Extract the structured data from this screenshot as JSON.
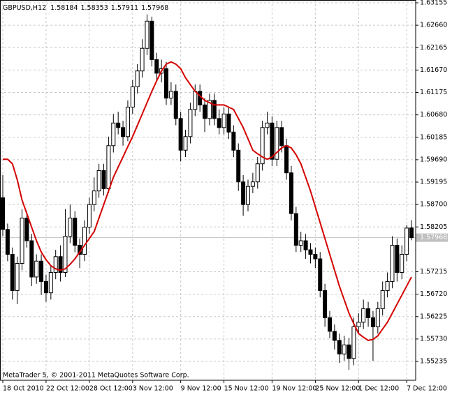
{
  "chart_data": {
    "type": "candlestick",
    "title": "GBPUSD,H12",
    "header_values": [
      1.58184,
      1.58353,
      1.57911,
      1.57968
    ],
    "footer": "MetaTrader 5, © 2001-2011 MetaQuotes Software Corp.",
    "last_price": 1.57968,
    "categories": [
      "18 Oct 2010",
      null,
      null,
      null,
      null,
      null,
      null,
      null,
      null,
      "22 Oct 12:00",
      null,
      null,
      null,
      null,
      null,
      null,
      null,
      null,
      "28 Oct 12:00",
      null,
      null,
      null,
      null,
      null,
      null,
      null,
      null,
      "3 Nov 12:00",
      null,
      null,
      null,
      null,
      null,
      null,
      null,
      null,
      null,
      "9 Nov 12:00",
      null,
      null,
      null,
      null,
      null,
      null,
      null,
      null,
      "15 Nov 12:00",
      null,
      null,
      null,
      null,
      null,
      null,
      null,
      null,
      null,
      "19 Nov 12:00",
      null,
      null,
      null,
      null,
      null,
      null,
      null,
      null,
      "25 Nov 12:00",
      null,
      null,
      null,
      null,
      null,
      null,
      null,
      null,
      "1 Dec 12:00",
      null,
      null,
      null,
      null,
      null,
      null,
      null,
      null,
      null,
      "7 Dec 12:00",
      null
    ],
    "open": [
      1.5885,
      1.5815,
      1.576,
      1.568,
      1.574,
      1.584,
      1.579,
      1.571,
      1.5745,
      1.57,
      1.5675,
      1.572,
      1.5755,
      1.572,
      1.58,
      1.584,
      1.578,
      1.576,
      1.582,
      1.587,
      1.59,
      1.5945,
      1.5905,
      1.6,
      1.605,
      1.604,
      1.602,
      1.6085,
      1.613,
      1.6165,
      1.6215,
      1.6275,
      1.619,
      1.616,
      1.617,
      1.6105,
      1.612,
      1.606,
      1.599,
      1.602,
      1.608,
      1.612,
      1.609,
      1.606,
      1.61,
      1.606,
      1.604,
      1.607,
      1.603,
      1.599,
      1.592,
      1.587,
      1.591,
      1.592,
      1.596,
      1.604,
      1.605,
      1.597,
      1.604,
      1.6,
      1.594,
      1.585,
      1.578,
      1.579,
      1.577,
      1.576,
      1.575,
      1.568,
      1.562,
      1.559,
      1.557,
      1.554,
      1.556,
      1.553,
      1.56,
      1.561,
      1.564,
      1.562,
      1.56,
      1.564,
      1.568,
      1.57,
      1.578,
      1.572,
      1.576,
      1.58184
    ],
    "high": [
      1.5935,
      1.5828,
      1.5775,
      1.5755,
      1.586,
      1.5855,
      1.5805,
      1.576,
      1.576,
      1.5715,
      1.5735,
      1.577,
      1.578,
      1.586,
      1.587,
      1.5855,
      1.5795,
      1.5835,
      1.5885,
      1.593,
      1.596,
      1.596,
      1.602,
      1.607,
      1.6075,
      1.6055,
      1.61,
      1.6145,
      1.618,
      1.6235,
      1.629,
      1.6285,
      1.6205,
      1.619,
      1.6185,
      1.614,
      1.6135,
      1.6075,
      1.6035,
      1.6095,
      1.6135,
      1.6135,
      1.6105,
      1.6115,
      1.6115,
      1.608,
      1.6085,
      1.6085,
      1.6045,
      1.6005,
      1.5935,
      1.5925,
      1.594,
      1.5975,
      1.6055,
      1.6075,
      1.6065,
      1.6055,
      1.6055,
      1.6015,
      1.5955,
      1.5865,
      1.581,
      1.5805,
      1.5785,
      1.5775,
      1.5765,
      1.5695,
      1.5635,
      1.5605,
      1.5585,
      1.558,
      1.5575,
      1.562,
      1.563,
      1.566,
      1.5655,
      1.5635,
      1.5655,
      1.57,
      1.572,
      1.58,
      1.5795,
      1.578,
      1.5825,
      1.58353
    ],
    "low": [
      1.58,
      1.5745,
      1.566,
      1.565,
      1.5725,
      1.5775,
      1.569,
      1.5695,
      1.567,
      1.5655,
      1.566,
      1.5705,
      1.57,
      1.571,
      1.5785,
      1.5765,
      1.573,
      1.5745,
      1.5805,
      1.5855,
      1.5885,
      1.589,
      1.5895,
      1.5985,
      1.6025,
      1.6,
      1.601,
      1.607,
      1.6115,
      1.615,
      1.62,
      1.6175,
      1.6145,
      1.614,
      1.609,
      1.609,
      1.6045,
      1.5965,
      1.5975,
      1.6005,
      1.6065,
      1.6075,
      1.603,
      1.6045,
      1.6045,
      1.6025,
      1.6025,
      1.6015,
      1.5975,
      1.59,
      1.5845,
      1.5855,
      1.5895,
      1.5905,
      1.5945,
      1.6025,
      1.5955,
      1.5955,
      1.5985,
      1.5925,
      1.5835,
      1.5765,
      1.5765,
      1.575,
      1.574,
      1.573,
      1.5665,
      1.56,
      1.5575,
      1.555,
      1.552,
      1.5525,
      1.5505,
      1.5515,
      1.5585,
      1.5595,
      1.56,
      1.5525,
      1.5585,
      1.5625,
      1.5665,
      1.5685,
      1.57,
      1.5705,
      1.5745,
      1.57911
    ],
    "close": [
      1.5815,
      1.576,
      1.568,
      1.574,
      1.584,
      1.579,
      1.571,
      1.5745,
      1.57,
      1.5675,
      1.572,
      1.5755,
      1.572,
      1.58,
      1.584,
      1.578,
      1.576,
      1.582,
      1.587,
      1.59,
      1.5945,
      1.5905,
      1.6,
      1.605,
      1.604,
      1.602,
      1.6085,
      1.613,
      1.6165,
      1.6215,
      1.6275,
      1.619,
      1.616,
      1.617,
      1.6105,
      1.612,
      1.606,
      1.599,
      1.602,
      1.608,
      1.612,
      1.609,
      1.606,
      1.61,
      1.606,
      1.604,
      1.607,
      1.603,
      1.599,
      1.592,
      1.587,
      1.591,
      1.592,
      1.596,
      1.604,
      1.605,
      1.597,
      1.604,
      1.6,
      1.594,
      1.585,
      1.578,
      1.579,
      1.577,
      1.576,
      1.575,
      1.568,
      1.562,
      1.559,
      1.557,
      1.554,
      1.556,
      1.553,
      1.56,
      1.561,
      1.564,
      1.562,
      1.56,
      1.564,
      1.568,
      1.57,
      1.578,
      1.572,
      1.576,
      1.5818,
      1.57968
    ],
    "ma": {
      "color": "#d40000",
      "values": [
        1.597,
        1.597,
        1.596,
        1.5925,
        1.588,
        1.585,
        1.582,
        1.579,
        1.5765,
        1.5748,
        1.5735,
        1.5728,
        1.5725,
        1.5728,
        1.5738,
        1.575,
        1.5765,
        1.578,
        1.5795,
        1.581,
        1.584,
        1.587,
        1.59,
        1.593,
        1.5953,
        1.5975,
        1.5998,
        1.602,
        1.6045,
        1.607,
        1.6095,
        1.612,
        1.6143,
        1.6165,
        1.618,
        1.6185,
        1.618,
        1.617,
        1.615,
        1.6135,
        1.612,
        1.611,
        1.61,
        1.6095,
        1.609,
        1.609,
        1.609,
        1.6085,
        1.608,
        1.606,
        1.604,
        1.6015,
        1.599,
        1.5982,
        1.5975,
        1.597,
        1.5975,
        1.5985,
        1.5995,
        1.6,
        1.5995,
        1.598,
        1.596,
        1.593,
        1.59,
        1.5865,
        1.583,
        1.5795,
        1.576,
        1.5725,
        1.569,
        1.566,
        1.563,
        1.5607,
        1.5585,
        1.5577,
        1.557,
        1.5572,
        1.558,
        1.5595,
        1.561,
        1.563,
        1.565,
        1.567,
        1.569,
        1.571
      ]
    },
    "up_color": "#ffffff",
    "down_color": "#000000",
    "ylim": [
      1.54819,
      1.63217
    ],
    "yticks": [
      1.63155,
      {
        "value": 1.6266,
        "label": "1.62660"
      },
      1.62165,
      {
        "value": 1.6167,
        "label": "1.61670"
      },
      1.61175,
      {
        "value": 1.6068,
        "label": "1.60680"
      },
      1.60185,
      {
        "value": 1.5969,
        "label": "1.59690"
      },
      1.59195,
      {
        "value": 1.587,
        "label": "1.58700"
      },
      1.58205,
      1.57215,
      {
        "value": 1.5672,
        "label": "1.56720"
      },
      1.56225,
      {
        "value": 1.5573,
        "label": "1.55730"
      },
      1.55235
    ],
    "grid": true
  }
}
